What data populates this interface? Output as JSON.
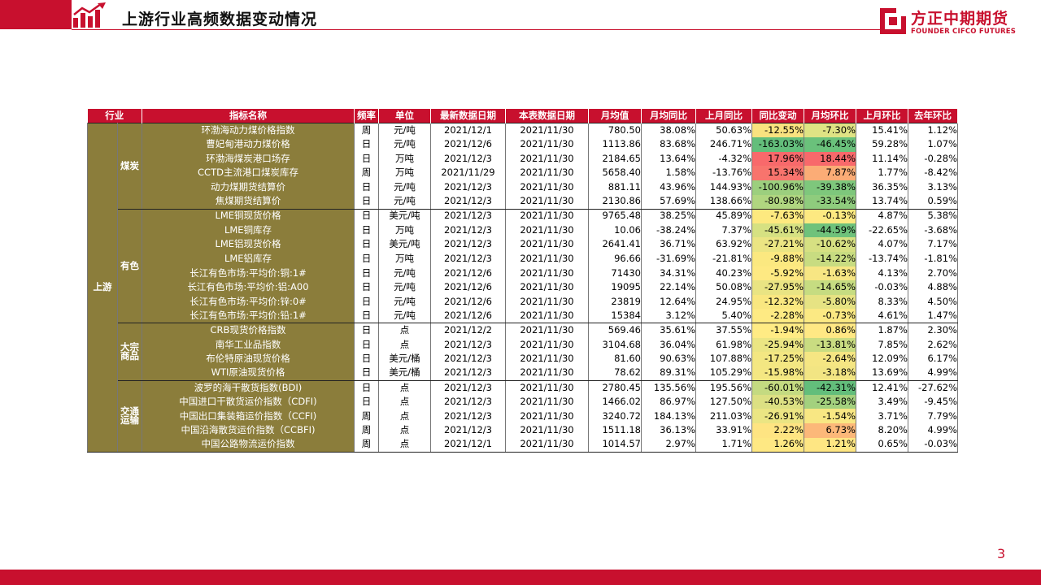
{
  "header": {
    "title": "上游行业高频数据变动情况",
    "brand_name": "方正中期期货",
    "brand_sub": "FOUNDER CIFCO FUTURES"
  },
  "table": {
    "columns": [
      "行业",
      "指标名称",
      "频率",
      "单位",
      "最新数据日期",
      "本表数据日期",
      "月均值",
      "月均同比",
      "上月同比",
      "同比变动",
      "月均环比",
      "上月环比",
      "去年环比"
    ],
    "industry": "上游",
    "groups": [
      {
        "name": "煤炭",
        "rows": [
          {
            "name": "环渤海动力煤价格指数",
            "freq": "周",
            "unit": "元/吨",
            "latest": "2021/12/1",
            "table_date": "2021/11/30",
            "avg": "780.50",
            "yoy": "38.08%",
            "prev_yoy": "50.63%",
            "yoy_chg": "-12.55%",
            "mom": "-7.30%",
            "prev_mom": "15.41%",
            "last_year_mom": "1.12%",
            "yoy_color": "#f9e27f",
            "mom_color": "#dfe384"
          },
          {
            "name": "曹妃甸港动力煤价格",
            "freq": "日",
            "unit": "元/吨",
            "latest": "2021/12/6",
            "table_date": "2021/11/30",
            "avg": "1113.86",
            "yoy": "83.68%",
            "prev_yoy": "246.71%",
            "yoy_chg": "-163.03%",
            "mom": "-46.45%",
            "prev_mom": "59.28%",
            "last_year_mom": "1.07%",
            "yoy_color": "#63be7b",
            "mom_color": "#6ac17b"
          },
          {
            "name": "环渤海煤炭港口场存",
            "freq": "日",
            "unit": "万吨",
            "latest": "2021/12/3",
            "table_date": "2021/11/30",
            "avg": "2184.65",
            "yoy": "13.64%",
            "prev_yoy": "-4.32%",
            "yoy_chg": "17.96%",
            "mom": "18.44%",
            "prev_mom": "11.14%",
            "last_year_mom": "-0.28%",
            "yoy_color": "#f8696b",
            "mom_color": "#f8696b"
          },
          {
            "name": "CCTD主流港口煤炭库存",
            "freq": "周",
            "unit": "万吨",
            "latest": "2021/11/29",
            "table_date": "2021/11/30",
            "avg": "5658.40",
            "yoy": "1.58%",
            "prev_yoy": "-13.76%",
            "yoy_chg": "15.34%",
            "mom": "7.87%",
            "prev_mom": "1.77%",
            "last_year_mom": "-8.42%",
            "yoy_color": "#f8746d",
            "mom_color": "#fbac76"
          },
          {
            "name": "动力煤期货结算价",
            "freq": "日",
            "unit": "元/吨",
            "latest": "2021/12/3",
            "table_date": "2021/11/30",
            "avg": "881.11",
            "yoy": "43.96%",
            "prev_yoy": "144.93%",
            "yoy_chg": "-100.96%",
            "mom": "-39.38%",
            "prev_mom": "36.35%",
            "last_year_mom": "3.13%",
            "yoy_color": "#9ccf7e",
            "mom_color": "#7ec77c"
          },
          {
            "name": "焦煤期货结算价",
            "freq": "日",
            "unit": "元/吨",
            "latest": "2021/12/3",
            "table_date": "2021/11/30",
            "avg": "2130.86",
            "yoy": "57.69%",
            "prev_yoy": "138.66%",
            "yoy_chg": "-80.98%",
            "mom": "-33.54%",
            "prev_mom": "13.74%",
            "last_year_mom": "0.59%",
            "yoy_color": "#b0d680",
            "mom_color": "#8fcc7d"
          }
        ]
      },
      {
        "name": "有色",
        "rows": [
          {
            "name": "LME铜现货价格",
            "freq": "日",
            "unit": "美元/吨",
            "latest": "2021/12/3",
            "table_date": "2021/11/30",
            "avg": "9765.48",
            "yoy": "38.25%",
            "prev_yoy": "45.89%",
            "yoy_chg": "-7.63%",
            "mom": "-0.13%",
            "prev_mom": "4.87%",
            "last_year_mom": "5.38%",
            "yoy_color": "#fde97f",
            "mom_color": "#fde981"
          },
          {
            "name": "LME铜库存",
            "freq": "日",
            "unit": "万吨",
            "latest": "2021/12/3",
            "table_date": "2021/11/30",
            "avg": "10.06",
            "yoy": "-38.24%",
            "prev_yoy": "7.37%",
            "yoy_chg": "-45.61%",
            "mom": "-44.59%",
            "prev_mom": "-22.65%",
            "last_year_mom": "-3.68%",
            "yoy_color": "#d6e182",
            "mom_color": "#6fc27b"
          },
          {
            "name": "LME铝现货价格",
            "freq": "日",
            "unit": "美元/吨",
            "latest": "2021/12/3",
            "table_date": "2021/11/30",
            "avg": "2641.41",
            "yoy": "36.71%",
            "prev_yoy": "63.92%",
            "yoy_chg": "-27.21%",
            "mom": "-10.62%",
            "prev_mom": "4.07%",
            "last_year_mom": "7.17%",
            "yoy_color": "#ebe583",
            "mom_color": "#d6e082"
          },
          {
            "name": "LME铝库存",
            "freq": "日",
            "unit": "万吨",
            "latest": "2021/12/3",
            "table_date": "2021/11/30",
            "avg": "96.66",
            "yoy": "-31.69%",
            "prev_yoy": "-21.81%",
            "yoy_chg": "-9.88%",
            "mom": "-14.22%",
            "prev_mom": "-13.74%",
            "last_year_mom": "-1.81%",
            "yoy_color": "#fbe880",
            "mom_color": "#c8dc81"
          },
          {
            "name": "长江有色市场:平均价:铜:1#",
            "freq": "日",
            "unit": "元/吨",
            "latest": "2021/12/6",
            "table_date": "2021/11/30",
            "avg": "71430",
            "yoy": "34.31%",
            "prev_yoy": "40.23%",
            "yoy_chg": "-5.92%",
            "mom": "-1.63%",
            "prev_mom": "4.13%",
            "last_year_mom": "2.70%",
            "yoy_color": "#fee982",
            "mom_color": "#f7e683"
          },
          {
            "name": "长江有色市场:平均价:铝:A00",
            "freq": "日",
            "unit": "元/吨",
            "latest": "2021/12/6",
            "table_date": "2021/11/30",
            "avg": "19095",
            "yoy": "22.14%",
            "prev_yoy": "50.08%",
            "yoy_chg": "-27.95%",
            "mom": "-14.65%",
            "prev_mom": "-0.03%",
            "last_year_mom": "4.88%",
            "yoy_color": "#e9e483",
            "mom_color": "#c6dc81"
          },
          {
            "name": "长江有色市场:平均价:锌:0#",
            "freq": "日",
            "unit": "元/吨",
            "latest": "2021/12/6",
            "table_date": "2021/11/30",
            "avg": "23819",
            "yoy": "12.64%",
            "prev_yoy": "24.95%",
            "yoy_chg": "-12.32%",
            "mom": "-5.80%",
            "prev_mom": "8.33%",
            "last_year_mom": "4.50%",
            "yoy_color": "#f9e780",
            "mom_color": "#e6e383"
          },
          {
            "name": "长江有色市场:平均价:铅:1#",
            "freq": "日",
            "unit": "元/吨",
            "latest": "2021/12/6",
            "table_date": "2021/11/30",
            "avg": "15384",
            "yoy": "3.12%",
            "prev_yoy": "5.40%",
            "yoy_chg": "-2.28%",
            "mom": "-0.73%",
            "prev_mom": "4.61%",
            "last_year_mom": "1.47%",
            "yoy_color": "#feea83",
            "mom_color": "#fbe983"
          }
        ]
      },
      {
        "name": "大宗\n商品",
        "rows": [
          {
            "name": "CRB现货价格指数",
            "freq": "日",
            "unit": "点",
            "latest": "2021/12/2",
            "table_date": "2021/11/30",
            "avg": "569.46",
            "yoy": "35.61%",
            "prev_yoy": "37.55%",
            "yoy_chg": "-1.94%",
            "mom": "0.86%",
            "prev_mom": "1.87%",
            "last_year_mom": "2.30%",
            "yoy_color": "#ffeb84",
            "mom_color": "#ffe884"
          },
          {
            "name": "南华工业品指数",
            "freq": "日",
            "unit": "点",
            "latest": "2021/12/3",
            "table_date": "2021/11/30",
            "avg": "3104.68",
            "yoy": "36.04%",
            "prev_yoy": "61.98%",
            "yoy_chg": "-25.94%",
            "mom": "-13.81%",
            "prev_mom": "7.85%",
            "last_year_mom": "2.62%",
            "yoy_color": "#ebe583",
            "mom_color": "#c9dc81"
          },
          {
            "name": "布伦特原油现货价格",
            "freq": "日",
            "unit": "美元/桶",
            "latest": "2021/12/3",
            "table_date": "2021/11/30",
            "avg": "81.60",
            "yoy": "90.63%",
            "prev_yoy": "107.88%",
            "yoy_chg": "-17.25%",
            "mom": "-2.64%",
            "prev_mom": "12.09%",
            "last_year_mom": "6.17%",
            "yoy_color": "#f3e782",
            "mom_color": "#f5e683"
          },
          {
            "name": "WTI原油现货价格",
            "freq": "日",
            "unit": "美元/桶",
            "latest": "2021/12/3",
            "table_date": "2021/11/30",
            "avg": "78.62",
            "yoy": "89.31%",
            "prev_yoy": "105.29%",
            "yoy_chg": "-15.98%",
            "mom": "-3.18%",
            "prev_mom": "13.69%",
            "last_year_mom": "4.99%",
            "yoy_color": "#f4e782",
            "mom_color": "#f2e583"
          }
        ]
      },
      {
        "name": "交通\n运输",
        "rows": [
          {
            "name": "波罗的海干散货指数(BDI)",
            "freq": "日",
            "unit": "点",
            "latest": "2021/12/3",
            "table_date": "2021/11/30",
            "avg": "2780.45",
            "yoy": "135.56%",
            "prev_yoy": "195.56%",
            "yoy_chg": "-60.01%",
            "mom": "-42.31%",
            "prev_mom": "12.41%",
            "last_year_mom": "-27.62%",
            "yoy_color": "#c4da81",
            "mom_color": "#63be7b"
          },
          {
            "name": "中国进口干散货运价指数（CDFI)",
            "freq": "日",
            "unit": "点",
            "latest": "2021/12/3",
            "table_date": "2021/11/30",
            "avg": "1466.02",
            "yoy": "86.97%",
            "prev_yoy": "127.50%",
            "yoy_chg": "-40.53%",
            "mom": "-25.58%",
            "prev_mom": "3.49%",
            "last_year_mom": "-9.45%",
            "yoy_color": "#dce083",
            "mom_color": "#a3d17e"
          },
          {
            "name": "中国出口集装箱运价指数（CCFI)",
            "freq": "周",
            "unit": "点",
            "latest": "2021/12/3",
            "table_date": "2021/11/30",
            "avg": "3240.72",
            "yoy": "184.13%",
            "prev_yoy": "211.03%",
            "yoy_chg": "-26.91%",
            "mom": "-1.54%",
            "prev_mom": "3.71%",
            "last_year_mom": "7.79%",
            "yoy_color": "#ebe583",
            "mom_color": "#f8e783"
          },
          {
            "name": "中国沿海散货运价指数（CCBFI)",
            "freq": "周",
            "unit": "点",
            "latest": "2021/12/3",
            "table_date": "2021/11/30",
            "avg": "1511.18",
            "yoy": "36.13%",
            "prev_yoy": "33.91%",
            "yoy_chg": "2.22%",
            "mom": "6.73%",
            "prev_mom": "8.20%",
            "last_year_mom": "4.99%",
            "yoy_color": "#fee482",
            "mom_color": "#fcb879"
          },
          {
            "name": "中国公路物流运价指数",
            "freq": "周",
            "unit": "点",
            "latest": "2021/12/1",
            "table_date": "2021/11/30",
            "avg": "1014.57",
            "yoy": "2.97%",
            "prev_yoy": "1.71%",
            "yoy_chg": "1.26%",
            "mom": "1.21%",
            "prev_mom": "0.65%",
            "last_year_mom": "-0.03%",
            "yoy_color": "#fee883",
            "mom_color": "#fee683"
          }
        ]
      }
    ]
  },
  "footer": {
    "page_number": "3"
  },
  "colors": {
    "accent": "#c8102e",
    "olive": "#8b7d3b"
  }
}
